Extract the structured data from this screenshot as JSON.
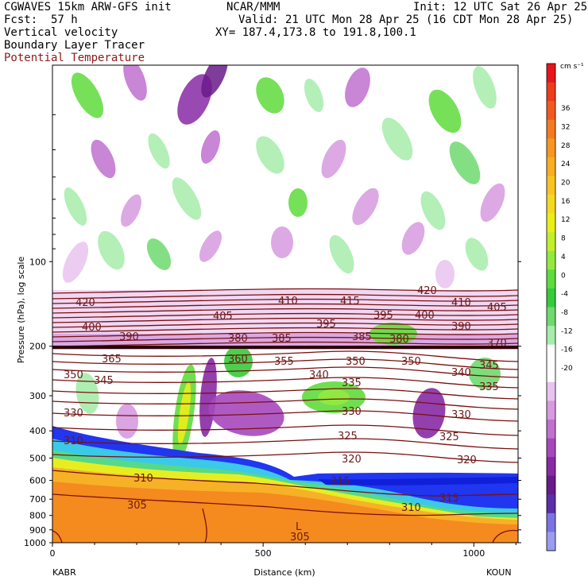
{
  "header": {
    "model": "CGWAVES 15km ARW-GFS init",
    "fcst_label": "Fcst:",
    "fcst_value": "57 h",
    "center": "NCAR/MMM",
    "init": "Init: 12 UTC Sat 26 Apr 25",
    "valid": "Valid: 21 UTC Mon 28 Apr 25 (16 CDT Mon 28 Apr 25)",
    "xy": "XY= 187.4,173.8 to 191.8,100.1",
    "fields": [
      "Vertical velocity",
      "Boundary Layer Tracer",
      "Potential Temperature"
    ]
  },
  "chart_data": {
    "type": "heatmap",
    "title": "",
    "xlabel": "Distance (km)",
    "ylabel": "Pressure (hPa), log scale",
    "x_ticks": [
      0,
      500,
      1000
    ],
    "x_range": [
      0,
      1105
    ],
    "y_ticks": [
      100,
      200,
      300,
      400,
      500,
      600,
      700,
      800,
      900,
      1000
    ],
    "y_range": [
      1000,
      20
    ],
    "y_scale": "log",
    "left_station": "KABR",
    "right_station": "KOUN",
    "colorbar": {
      "units": "cm s⁻¹",
      "labels": [
        36,
        32,
        28,
        24,
        20,
        16,
        12,
        8,
        4,
        0,
        -4,
        -8,
        -12,
        -16,
        -20
      ],
      "colors": [
        "#e8141c",
        "#ee3b1a",
        "#f25a1d",
        "#f47a1f",
        "#f79620",
        "#f9ad22",
        "#fac323",
        "#f3d91f",
        "#e9ee18",
        "#c2ef2b",
        "#93ea3f",
        "#5fdb3c",
        "#36cb3a",
        "#6fd96e",
        "#a6ecaa",
        "#ffffff",
        "#ffffff",
        "#e9c3ef",
        "#d79ae0",
        "#c070cf",
        "#a648bc",
        "#872aa5",
        "#6a1a8a",
        "#5a2fa8",
        "#7a73e3",
        "#9a9cf2"
      ]
    },
    "theta_labels": [
      420,
      415,
      410,
      405,
      400,
      395,
      390,
      385,
      380,
      370,
      365,
      360,
      355,
      350,
      345,
      340,
      335,
      330,
      325,
      320,
      315,
      310,
      305
    ],
    "low_marker": "L"
  }
}
